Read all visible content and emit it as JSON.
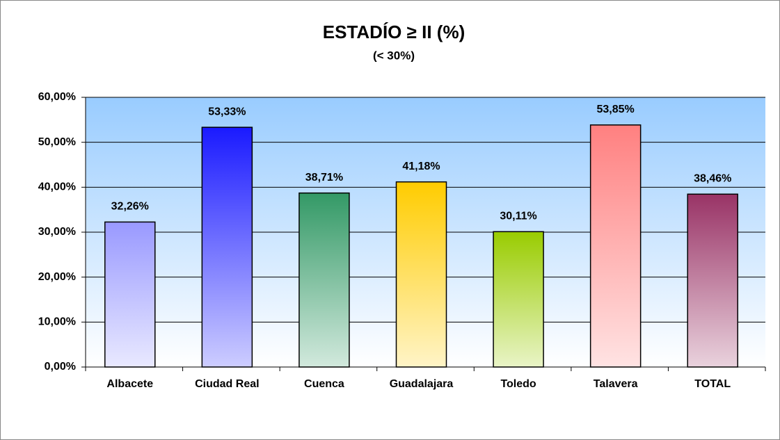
{
  "chart_data": {
    "type": "bar",
    "title": "ESTADÍO ≥ II (%)",
    "subtitle": "(< 30%)",
    "categories": [
      "Albacete",
      "Ciudad Real",
      "Cuenca",
      "Guadalajara",
      "Toledo",
      "Talavera",
      "TOTAL"
    ],
    "values": [
      32.26,
      53.33,
      38.71,
      41.18,
      30.11,
      53.85,
      38.46
    ],
    "value_labels": [
      "32,26%",
      "53,33%",
      "38,71%",
      "41,18%",
      "30,11%",
      "53,85%",
      "38,46%"
    ],
    "colors": [
      "#9999ff",
      "#1a1aff",
      "#339966",
      "#ffcc00",
      "#99cc00",
      "#ff8080",
      "#993366"
    ],
    "ylim": [
      0,
      60
    ],
    "yticks": [
      {
        "value": 0,
        "label": "0,00%"
      },
      {
        "value": 10,
        "label": "10,00%"
      },
      {
        "value": 20,
        "label": "20,00%"
      },
      {
        "value": 30,
        "label": "30,00%"
      },
      {
        "value": 40,
        "label": "40,00%"
      },
      {
        "value": 50,
        "label": "50,00%"
      },
      {
        "value": 60,
        "label": "60,00%"
      }
    ],
    "grid": true
  }
}
